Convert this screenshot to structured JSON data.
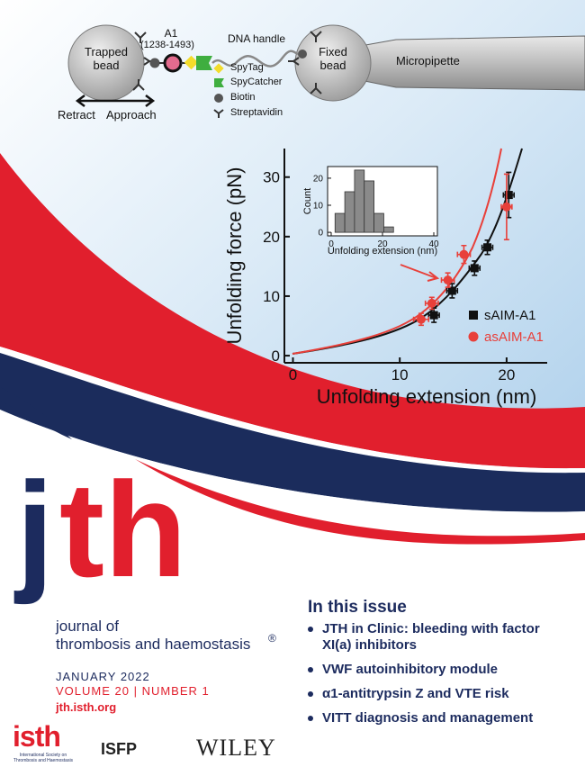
{
  "diagram": {
    "trapped_bead": "Trapped bead",
    "a1": "A1",
    "a1_range": "(1238-1493)",
    "dna_handle": "DNA handle",
    "fixed_bead": "Fixed bead",
    "micropipette": "Micropipette",
    "retract": "Retract",
    "approach": "Approach",
    "legend": [
      "SpyTag",
      "SpyCatcher",
      "Biotin",
      "Streptavidin"
    ]
  },
  "chart_data": [
    {
      "type": "scatter",
      "x_label": "Unfolding extension (nm)",
      "y_label": "Unfolding force (pN)",
      "xlim": [
        -0.8,
        23.8
      ],
      "ylim": [
        -1.2,
        34.8
      ],
      "xticks": [
        0,
        10,
        20
      ],
      "yticks": [
        0,
        10,
        20,
        30
      ],
      "grid": false,
      "legend": "lower right",
      "series": [
        {
          "name": "sAIM-A1",
          "color": "#111111",
          "marker": "square",
          "x": [
            13.2,
            14.9,
            17.0,
            18.2,
            20.2
          ],
          "values": [
            6.8,
            10.9,
            14.7,
            18.2,
            27.0
          ],
          "x_err": [
            0.5,
            0.5,
            0.5,
            0.5,
            0.5
          ],
          "y_err": [
            1.2,
            1.2,
            1.2,
            1.2,
            3.8
          ]
        },
        {
          "name": "asAIM-A1",
          "color": "#e8403a",
          "marker": "circle",
          "x": [
            12.0,
            13.0,
            14.5,
            16.0,
            20.0
          ],
          "values": [
            6.1,
            8.8,
            12.7,
            17.0,
            25.0
          ],
          "x_err": [
            0.7,
            0.6,
            0.6,
            0.6,
            0.5
          ],
          "y_err": [
            1.0,
            1.0,
            1.2,
            1.5,
            5.5
          ]
        }
      ]
    },
    {
      "type": "histogram",
      "x_label": "Unfolding extension (nm)",
      "y_label": "Count",
      "xlim": [
        -1.4,
        41.4
      ],
      "ylim": [
        -1.3,
        24.3
      ],
      "xticks": [
        0,
        20,
        40
      ],
      "yticks": [
        0,
        10,
        20
      ],
      "bins": [
        1.5,
        5.3,
        9.1,
        12.9,
        16.7,
        20.5,
        24.3
      ],
      "values": [
        7,
        15,
        23,
        19,
        7,
        2
      ],
      "color": "#8a8a8a"
    }
  ],
  "cover": {
    "logo": [
      "j",
      "th"
    ],
    "journal_name": [
      "journal of",
      "thrombosis and haemostasis"
    ],
    "registered": "®",
    "date": "JANUARY 2022",
    "volume": "VOLUME 20 | NUMBER 1",
    "url": "jth.isth.org",
    "issue_heading": "In this issue",
    "issue_items": [
      "JTH in Clinic: bleeding with factor XI(a) inhibitors",
      "VWF autoinhibitory module",
      "α1-antitrypsin Z and VTE risk",
      "VITT diagnosis and management"
    ],
    "publishers": {
      "isth": "isth",
      "isth_full": "International Society on Thrombosis and Haemostasis",
      "isfp": "ISFP",
      "wiley": "WILEY"
    }
  }
}
